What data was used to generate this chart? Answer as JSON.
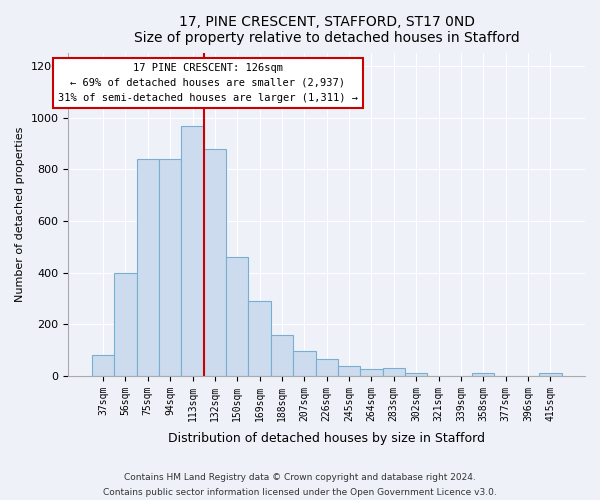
{
  "title1": "17, PINE CRESCENT, STAFFORD, ST17 0ND",
  "title2": "Size of property relative to detached houses in Stafford",
  "xlabel": "Distribution of detached houses by size in Stafford",
  "ylabel": "Number of detached properties",
  "categories": [
    "37sqm",
    "56sqm",
    "75sqm",
    "94sqm",
    "113sqm",
    "132sqm",
    "150sqm",
    "169sqm",
    "188sqm",
    "207sqm",
    "226sqm",
    "245sqm",
    "264sqm",
    "283sqm",
    "302sqm",
    "321sqm",
    "339sqm",
    "358sqm",
    "377sqm",
    "396sqm",
    "415sqm"
  ],
  "values": [
    80,
    400,
    840,
    840,
    970,
    880,
    460,
    290,
    160,
    95,
    65,
    40,
    25,
    30,
    10,
    0,
    0,
    10,
    0,
    0,
    10
  ],
  "bar_color": "#ccdcee",
  "bar_edge_color": "#7aaed0",
  "vline_index": 5,
  "vline_color": "#cc0000",
  "annotation_text": "17 PINE CRESCENT: 126sqm\n← 69% of detached houses are smaller (2,937)\n31% of semi-detached houses are larger (1,311) →",
  "annotation_box_color": "#cc0000",
  "ylim": [
    0,
    1250
  ],
  "yticks": [
    0,
    200,
    400,
    600,
    800,
    1000,
    1200
  ],
  "footnote1": "Contains HM Land Registry data © Crown copyright and database right 2024.",
  "footnote2": "Contains public sector information licensed under the Open Government Licence v3.0.",
  "bg_color": "#eef2f8",
  "plot_bg_color": "#eef2f8"
}
